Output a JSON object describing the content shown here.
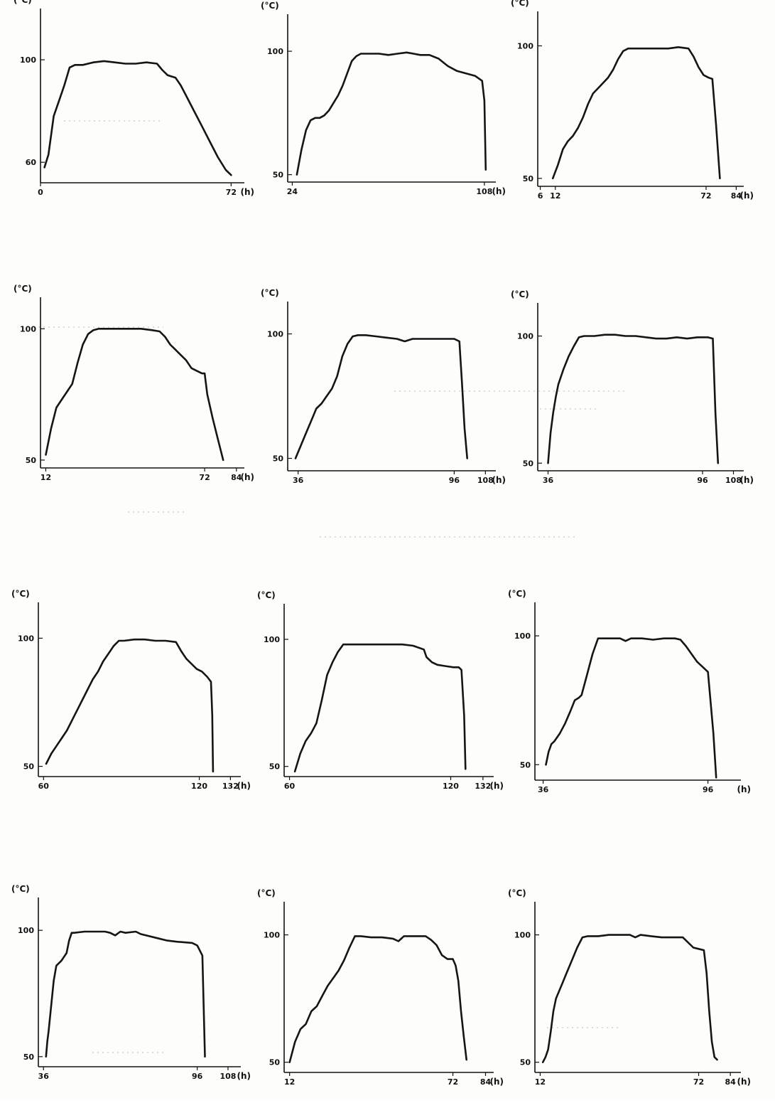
{
  "chart_data": [
    {
      "type": "line",
      "y_unit_label": "(°C)",
      "x_unit_label": "(h)",
      "ylim": [
        52,
        120
      ],
      "xlim": [
        0,
        77
      ],
      "y_ticks": [
        60,
        100
      ],
      "x_ticks": [
        0,
        72
      ],
      "x_tick_labels": [
        "0",
        "72"
      ],
      "x": [
        1.5,
        3,
        5,
        7,
        9,
        11,
        13,
        16,
        20,
        24,
        28,
        32,
        36,
        40,
        44,
        46,
        48,
        51,
        53,
        55,
        58,
        61,
        64,
        67,
        70,
        72
      ],
      "y": [
        58,
        63,
        78,
        84,
        90,
        97,
        98,
        98,
        99,
        99.5,
        99,
        98.5,
        98.5,
        99,
        98.5,
        96,
        94,
        93,
        90,
        86,
        80,
        74,
        68,
        62,
        57,
        55
      ]
    },
    {
      "type": "line",
      "y_unit_label": "(°C)",
      "x_unit_label": "(h)",
      "ylim": [
        47,
        115
      ],
      "xlim": [
        22,
        113
      ],
      "y_ticks": [
        50,
        100
      ],
      "x_ticks": [
        24,
        108
      ],
      "x_tick_labels": [
        "24",
        "108"
      ],
      "x": [
        26,
        28,
        30,
        32,
        34,
        36,
        38,
        40,
        42,
        44,
        46,
        48,
        50,
        52,
        54,
        56,
        58,
        62,
        66,
        70,
        74,
        77,
        80,
        84,
        88,
        92,
        96,
        100,
        104,
        107,
        108,
        108.6
      ],
      "y": [
        50,
        60,
        68,
        72,
        73,
        73,
        74,
        76,
        79,
        82,
        86,
        91,
        96,
        98,
        99,
        99,
        99,
        99,
        98.5,
        99,
        99.5,
        99,
        98.5,
        98.5,
        97,
        94,
        92,
        91,
        90,
        88,
        80,
        52
      ]
    },
    {
      "type": "line",
      "y_unit_label": "(°C)",
      "x_unit_label": "(h)",
      "ylim": [
        47,
        113
      ],
      "xlim": [
        5,
        87
      ],
      "y_ticks": [
        50,
        100
      ],
      "x_ticks": [
        6,
        12,
        72,
        84
      ],
      "x_tick_labels": [
        "6",
        "12",
        "72",
        "84"
      ],
      "x": [
        11,
        13,
        15,
        17,
        19,
        21,
        23,
        25,
        27,
        29,
        31,
        33,
        35,
        37,
        39,
        41,
        45,
        49,
        53,
        57,
        61,
        65,
        67,
        69,
        71,
        73,
        74.5,
        76,
        77.5
      ],
      "y": [
        50,
        55,
        61,
        64,
        66,
        69,
        73,
        78,
        82,
        84,
        86,
        88,
        91,
        95,
        98,
        99,
        99,
        99,
        99,
        99,
        99.5,
        99,
        96,
        92,
        89,
        88,
        87.5,
        70,
        50
      ]
    },
    {
      "type": "line",
      "y_unit_label": "(°C)",
      "x_unit_label": "(h)",
      "ylim": [
        47,
        112
      ],
      "xlim": [
        10,
        87
      ],
      "y_ticks": [
        50,
        100
      ],
      "x_ticks": [
        12,
        72,
        84
      ],
      "x_tick_labels": [
        "12",
        "72",
        "84"
      ],
      "x": [
        12,
        14,
        16,
        18,
        20,
        22,
        24,
        26,
        28,
        30,
        32,
        36,
        40,
        44,
        48,
        52,
        55,
        57,
        59,
        61,
        63,
        65,
        67,
        69,
        71,
        72,
        73,
        75,
        77,
        79
      ],
      "y": [
        52,
        62,
        70,
        73,
        76,
        79,
        87,
        94,
        98,
        99.5,
        100,
        100,
        100,
        100,
        100,
        99.5,
        99,
        97,
        94,
        92,
        90,
        88,
        85,
        84,
        83,
        83,
        75,
        66,
        58,
        50
      ]
    },
    {
      "type": "line",
      "y_unit_label": "(°C)",
      "x_unit_label": "(h)",
      "ylim": [
        45,
        113
      ],
      "xlim": [
        32,
        112
      ],
      "y_ticks": [
        50,
        100
      ],
      "x_ticks": [
        36,
        96,
        108
      ],
      "x_tick_labels": [
        "36",
        "96",
        "108"
      ],
      "x": [
        35,
        37,
        39,
        41,
        43,
        45,
        47,
        49,
        51,
        53,
        55,
        57,
        59,
        62,
        66,
        70,
        74,
        77,
        80,
        84,
        88,
        92,
        96,
        98,
        99,
        100,
        101
      ],
      "y": [
        50,
        55,
        60,
        65,
        70,
        72,
        75,
        78,
        83,
        91,
        96,
        99,
        99.5,
        99.5,
        99,
        98.5,
        98,
        97,
        98,
        98,
        98,
        98,
        98,
        97,
        80,
        62,
        50
      ]
    },
    {
      "type": "line",
      "y_unit_label": "(°C)",
      "x_unit_label": "(h)",
      "ylim": [
        47,
        113
      ],
      "xlim": [
        32,
        112
      ],
      "y_ticks": [
        50,
        100
      ],
      "x_ticks": [
        36,
        96,
        108
      ],
      "x_tick_labels": [
        "36",
        "96",
        "108"
      ],
      "x": [
        36,
        37,
        38,
        39,
        40,
        42,
        44,
        46,
        48,
        50,
        54,
        58,
        62,
        66,
        70,
        74,
        78,
        82,
        86,
        90,
        94,
        98,
        100,
        101,
        102
      ],
      "y": [
        50,
        62,
        70,
        76,
        81,
        87,
        92,
        96,
        99.5,
        100,
        100,
        100.5,
        100.5,
        100,
        100,
        99.5,
        99,
        99,
        99.5,
        99,
        99.5,
        99.5,
        99,
        70,
        50
      ]
    },
    {
      "type": "line",
      "y_unit_label": "(°C)",
      "x_unit_label": "(h)",
      "ylim": [
        46,
        114
      ],
      "xlim": [
        58,
        136
      ],
      "y_ticks": [
        50,
        100
      ],
      "x_ticks": [
        60,
        120,
        132
      ],
      "x_tick_labels": [
        "60",
        "120",
        "132"
      ],
      "x": [
        61,
        63,
        65,
        67,
        69,
        71,
        73,
        75,
        77,
        79,
        81,
        83,
        85,
        87,
        89,
        91,
        95,
        99,
        103,
        107,
        111,
        113,
        115,
        117,
        119,
        121,
        123,
        124.5,
        125,
        125.3
      ],
      "y": [
        51,
        55,
        58,
        61,
        64,
        68,
        72,
        76,
        80,
        84,
        87,
        91,
        94,
        97,
        99,
        99,
        99.5,
        99.5,
        99,
        99,
        98.5,
        95,
        92,
        90,
        88,
        87,
        85,
        83,
        70,
        48
      ]
    },
    {
      "type": "line",
      "y_unit_label": "(°C)",
      "x_unit_label": "(h)",
      "ylim": [
        46,
        114
      ],
      "xlim": [
        58,
        136
      ],
      "y_ticks": [
        50,
        100
      ],
      "x_ticks": [
        60,
        120,
        132
      ],
      "x_tick_labels": [
        "60",
        "120",
        "132"
      ],
      "x": [
        62,
        64,
        66,
        68,
        70,
        72,
        74,
        76,
        78,
        80,
        82,
        86,
        90,
        94,
        98,
        102,
        106,
        110,
        111,
        113,
        115,
        118,
        121,
        123,
        124,
        125,
        125.5
      ],
      "y": [
        48,
        55,
        60,
        63,
        67,
        76,
        86,
        91,
        95,
        98,
        98,
        98,
        98,
        98,
        98,
        98,
        97.5,
        96,
        93,
        91,
        90,
        89.5,
        89,
        89,
        88,
        70,
        49
      ]
    },
    {
      "type": "line",
      "y_unit_label": "(°C)",
      "x_unit_label": "(h)",
      "ylim": [
        44,
        113
      ],
      "xlim": [
        33,
        108
      ],
      "y_ticks": [
        50,
        100
      ],
      "x_ticks": [
        36,
        96
      ],
      "x_tick_labels": [
        "36",
        "96"
      ],
      "x": [
        37,
        38,
        39,
        40,
        42,
        44,
        46,
        47.5,
        49,
        50,
        52,
        54,
        56,
        60,
        64,
        66,
        68,
        72,
        76,
        80,
        84,
        86,
        88,
        90,
        92,
        94,
        96,
        98,
        99
      ],
      "y": [
        50,
        55,
        58,
        59,
        62,
        66,
        71,
        75,
        76,
        77,
        85,
        93,
        99,
        99,
        99,
        98,
        99,
        99,
        98.5,
        99,
        99,
        98.5,
        96,
        93,
        90,
        88,
        86,
        62,
        45
      ]
    },
    {
      "type": "line",
      "y_unit_label": "(°C)",
      "x_unit_label": "(h)",
      "ylim": [
        46,
        113
      ],
      "xlim": [
        34,
        113
      ],
      "y_ticks": [
        50,
        100
      ],
      "x_ticks": [
        36,
        96,
        108
      ],
      "x_tick_labels": [
        "36",
        "96",
        "108"
      ],
      "x": [
        37,
        37.5,
        38,
        39,
        40,
        41,
        43,
        45,
        46,
        47,
        48,
        52,
        56,
        60,
        62,
        64,
        66,
        68,
        72,
        74,
        76,
        80,
        84,
        88,
        94,
        96,
        98,
        98.5,
        99
      ],
      "y": [
        50,
        56,
        60,
        70,
        80,
        86,
        88,
        91,
        96,
        99,
        99,
        99.5,
        99.5,
        99.5,
        99,
        98,
        99.5,
        99,
        99.5,
        98.5,
        98,
        97,
        96,
        95.5,
        95,
        94,
        90,
        70,
        50
      ]
    },
    {
      "type": "line",
      "y_unit_label": "(°C)",
      "x_unit_label": "(h)",
      "ylim": [
        46,
        113
      ],
      "xlim": [
        10,
        87
      ],
      "y_ticks": [
        50,
        100
      ],
      "x_ticks": [
        12,
        72,
        84
      ],
      "x_tick_labels": [
        "12",
        "72",
        "84"
      ],
      "x": [
        12,
        14,
        16,
        18,
        20,
        22,
        24,
        26,
        28,
        30,
        32,
        34,
        36,
        38,
        42,
        46,
        50,
        52,
        54,
        58,
        62,
        64,
        66,
        68,
        70,
        72,
        73,
        74,
        75,
        76,
        77
      ],
      "y": [
        50,
        58,
        63,
        65,
        70,
        72,
        76,
        80,
        83,
        86,
        90,
        95,
        99.5,
        99.5,
        99,
        99,
        98.5,
        97.5,
        99.5,
        99.5,
        99.5,
        98,
        96,
        92,
        90.5,
        90.5,
        88,
        82,
        70,
        60,
        51
      ]
    },
    {
      "type": "line",
      "y_unit_label": "(°C)",
      "x_unit_label": "(h)",
      "ylim": [
        46,
        113
      ],
      "xlim": [
        10,
        88
      ],
      "y_ticks": [
        50,
        100
      ],
      "x_ticks": [
        12,
        72,
        84
      ],
      "x_tick_labels": [
        "12",
        "72",
        "84"
      ],
      "x": [
        13,
        14,
        15,
        16,
        17,
        18,
        20,
        22,
        24,
        26,
        28,
        30,
        34,
        38,
        42,
        46,
        48,
        50,
        54,
        58,
        62,
        66,
        70,
        72,
        74,
        75,
        76,
        77,
        78,
        79
      ],
      "y": [
        50,
        52,
        55,
        62,
        70,
        75,
        80,
        85,
        90,
        95,
        99,
        99.5,
        99.5,
        100,
        100,
        100,
        99,
        100,
        99.5,
        99,
        99,
        99,
        95,
        94.5,
        94,
        85,
        70,
        58,
        52,
        51
      ]
    }
  ]
}
